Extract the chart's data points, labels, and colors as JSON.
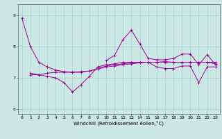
{
  "title": "",
  "xlabel": "Windchill (Refroidissement éolien,°C)",
  "bg_color": "#cce8e4",
  "line_color": "#990099",
  "xlim": [
    -0.5,
    23.5
  ],
  "ylim": [
    5.85,
    9.35
  ],
  "yticks": [
    6,
    7,
    8,
    9
  ],
  "xticks": [
    0,
    1,
    2,
    3,
    4,
    5,
    6,
    7,
    8,
    9,
    10,
    11,
    12,
    13,
    14,
    15,
    16,
    17,
    18,
    19,
    20,
    21,
    22,
    23
  ],
  "line1": [
    8.9,
    8.0,
    7.5,
    7.35,
    7.25,
    7.2,
    7.18,
    7.18,
    7.22,
    7.28,
    7.35,
    7.38,
    7.42,
    7.45,
    7.48,
    7.5,
    7.5,
    7.52,
    7.5,
    7.5,
    7.5,
    7.5,
    7.5,
    7.45
  ],
  "line2": [
    null,
    null,
    null,
    null,
    null,
    null,
    null,
    null,
    null,
    null,
    7.55,
    7.72,
    8.22,
    8.52,
    8.08,
    7.62,
    7.58,
    7.58,
    7.62,
    7.76,
    7.76,
    7.42,
    7.74,
    7.42
  ],
  "line3": [
    null,
    7.15,
    7.1,
    7.05,
    7.0,
    6.85,
    6.55,
    6.78,
    7.05,
    7.35,
    7.42,
    7.45,
    7.5,
    7.5,
    7.5,
    7.5,
    7.35,
    7.3,
    7.3,
    7.38,
    7.38,
    6.85,
    7.35,
    7.35
  ],
  "line4": [
    null,
    7.1,
    7.1,
    7.15,
    7.18,
    7.18,
    7.18,
    7.2,
    7.22,
    7.3,
    7.38,
    7.42,
    7.45,
    7.48,
    7.5,
    7.5,
    7.5,
    7.5,
    7.5,
    7.5,
    7.5,
    7.5,
    7.5,
    7.5
  ]
}
